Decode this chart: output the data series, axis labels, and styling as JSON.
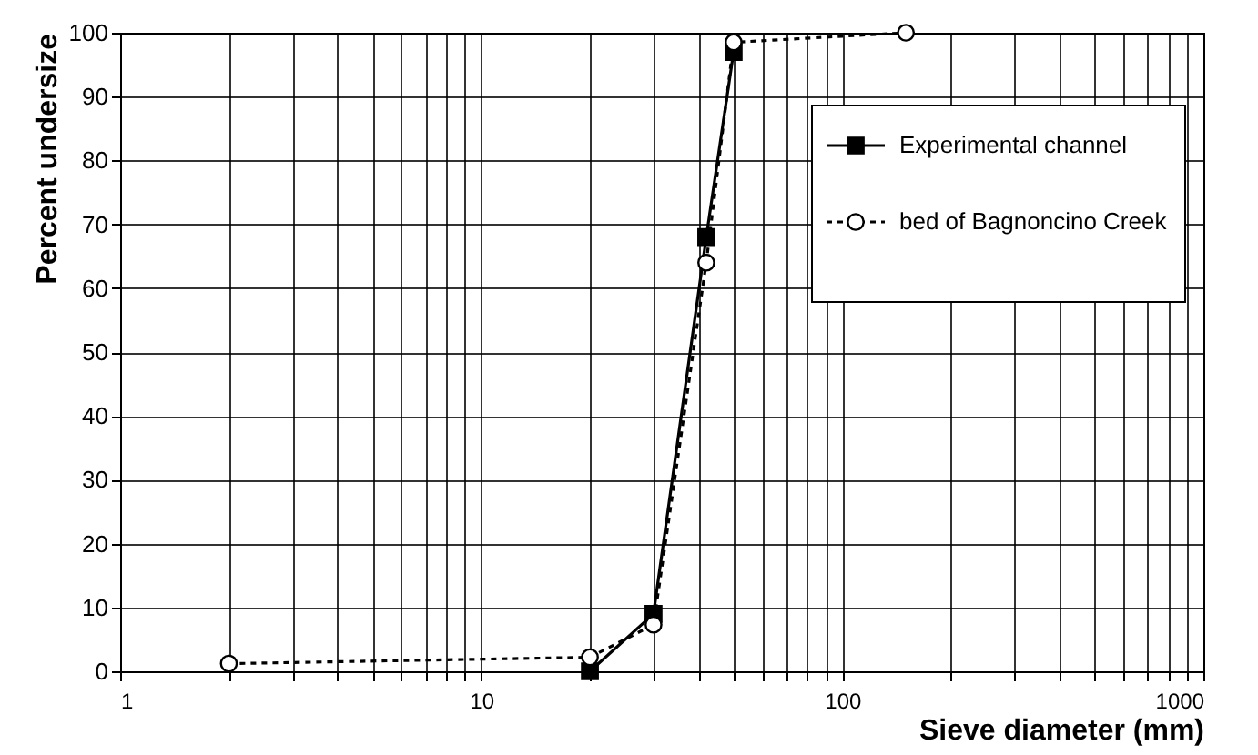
{
  "chart_data": {
    "type": "line",
    "xlabel": "Sieve diameter (mm)",
    "ylabel": "Percent undersize",
    "log": "x",
    "grid": true,
    "legend": "top right",
    "xlim": [
      1,
      1000
    ],
    "ylim": [
      0,
      100
    ],
    "xticks": [
      1,
      {
        "value": 2,
        "label": null
      },
      {
        "value": 3,
        "label": null
      },
      {
        "value": 4,
        "label": null
      },
      {
        "value": 5,
        "label": null
      },
      {
        "value": 6,
        "label": null
      },
      {
        "value": 7,
        "label": null
      },
      {
        "value": 8,
        "label": null
      },
      {
        "value": 9,
        "label": null
      },
      10,
      {
        "value": 20,
        "label": null
      },
      {
        "value": 30,
        "label": null
      },
      {
        "value": 40,
        "label": null
      },
      {
        "value": 50,
        "label": null
      },
      {
        "value": 60,
        "label": null
      },
      {
        "value": 70,
        "label": null
      },
      {
        "value": 80,
        "label": null
      },
      {
        "value": 90,
        "label": null
      },
      100,
      {
        "value": 200,
        "label": null
      },
      {
        "value": 300,
        "label": null
      },
      {
        "value": 400,
        "label": null
      },
      {
        "value": 500,
        "label": null
      },
      {
        "value": 600,
        "label": null
      },
      {
        "value": 700,
        "label": null
      },
      {
        "value": 800,
        "label": null
      },
      {
        "value": 900,
        "label": null
      },
      1000
    ],
    "yticks": [
      0,
      10,
      20,
      30,
      40,
      50,
      60,
      70,
      80,
      90,
      100
    ],
    "series": [
      {
        "name": "Experimental channel",
        "color": "#000000",
        "marker": "square",
        "line_style": "solid",
        "x": [
          20,
          30,
          42,
          50
        ],
        "values": [
          0,
          9,
          68,
          97
        ]
      },
      {
        "name": "bed of Bagnoncino Creek",
        "color": "#000000",
        "marker": "circle",
        "line_style": "dotted",
        "x": [
          2,
          20,
          30,
          42,
          50,
          150
        ],
        "values": [
          1.2,
          2.2,
          7.3,
          64,
          98.5,
          100
        ]
      }
    ]
  }
}
